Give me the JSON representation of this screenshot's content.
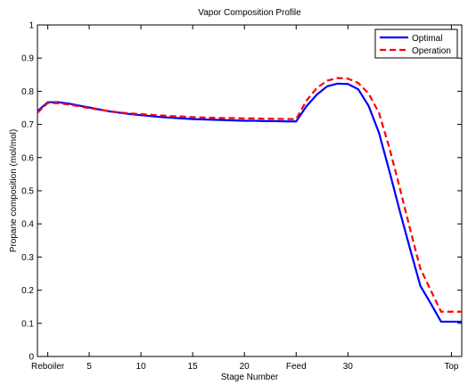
{
  "chart_data": {
    "type": "line",
    "title": "Vapor Composition Profile",
    "xlabel": "Stage Number",
    "ylabel": "Propane composition (mol/mol)",
    "xlim": [
      0,
      41
    ],
    "ylim": [
      0,
      1
    ],
    "x_ticks": [
      {
        "value": 1,
        "label": "Reboiler"
      },
      {
        "value": 5,
        "label": "5"
      },
      {
        "value": 10,
        "label": "10"
      },
      {
        "value": 15,
        "label": "15"
      },
      {
        "value": 20,
        "label": "20"
      },
      {
        "value": 25,
        "label": "Feed"
      },
      {
        "value": 30,
        "label": "30"
      },
      {
        "value": 40,
        "label": "Top"
      }
    ],
    "y_ticks": [
      0,
      0.1,
      0.2,
      0.3,
      0.4,
      0.5,
      0.6,
      0.7,
      0.8,
      0.9,
      1
    ],
    "legend_position": "top-right",
    "x": [
      0,
      1,
      2,
      3,
      4,
      5,
      6,
      7,
      8,
      9,
      10,
      11,
      12,
      13,
      14,
      15,
      16,
      17,
      18,
      19,
      20,
      21,
      22,
      23,
      24,
      25,
      26,
      27,
      28,
      29,
      30,
      31,
      32,
      33,
      34,
      35,
      36,
      37,
      38,
      39,
      40,
      41
    ],
    "series": [
      {
        "name": "Optimal",
        "color": "#0000ff",
        "dash": "solid",
        "values": [
          0.74,
          0.767,
          0.767,
          0.763,
          0.757,
          0.751,
          0.745,
          0.739,
          0.735,
          0.731,
          0.728,
          0.725,
          0.722,
          0.72,
          0.718,
          0.716,
          0.715,
          0.714,
          0.713,
          0.712,
          0.711,
          0.711,
          0.71,
          0.71,
          0.709,
          0.709,
          0.755,
          0.79,
          0.815,
          0.823,
          0.822,
          0.806,
          0.756,
          0.675,
          0.56,
          0.44,
          0.325,
          0.213,
          0.16,
          0.105,
          0.105,
          0.105
        ]
      },
      {
        "name": "Operation",
        "color": "#ff0000",
        "dash": "dashed",
        "values": [
          0.735,
          0.765,
          0.764,
          0.76,
          0.755,
          0.749,
          0.744,
          0.74,
          0.736,
          0.733,
          0.731,
          0.729,
          0.727,
          0.725,
          0.724,
          0.722,
          0.721,
          0.72,
          0.719,
          0.719,
          0.718,
          0.718,
          0.717,
          0.717,
          0.716,
          0.716,
          0.772,
          0.81,
          0.832,
          0.84,
          0.838,
          0.825,
          0.793,
          0.735,
          0.63,
          0.51,
          0.385,
          0.265,
          0.2,
          0.135,
          0.135,
          0.135
        ]
      }
    ]
  }
}
